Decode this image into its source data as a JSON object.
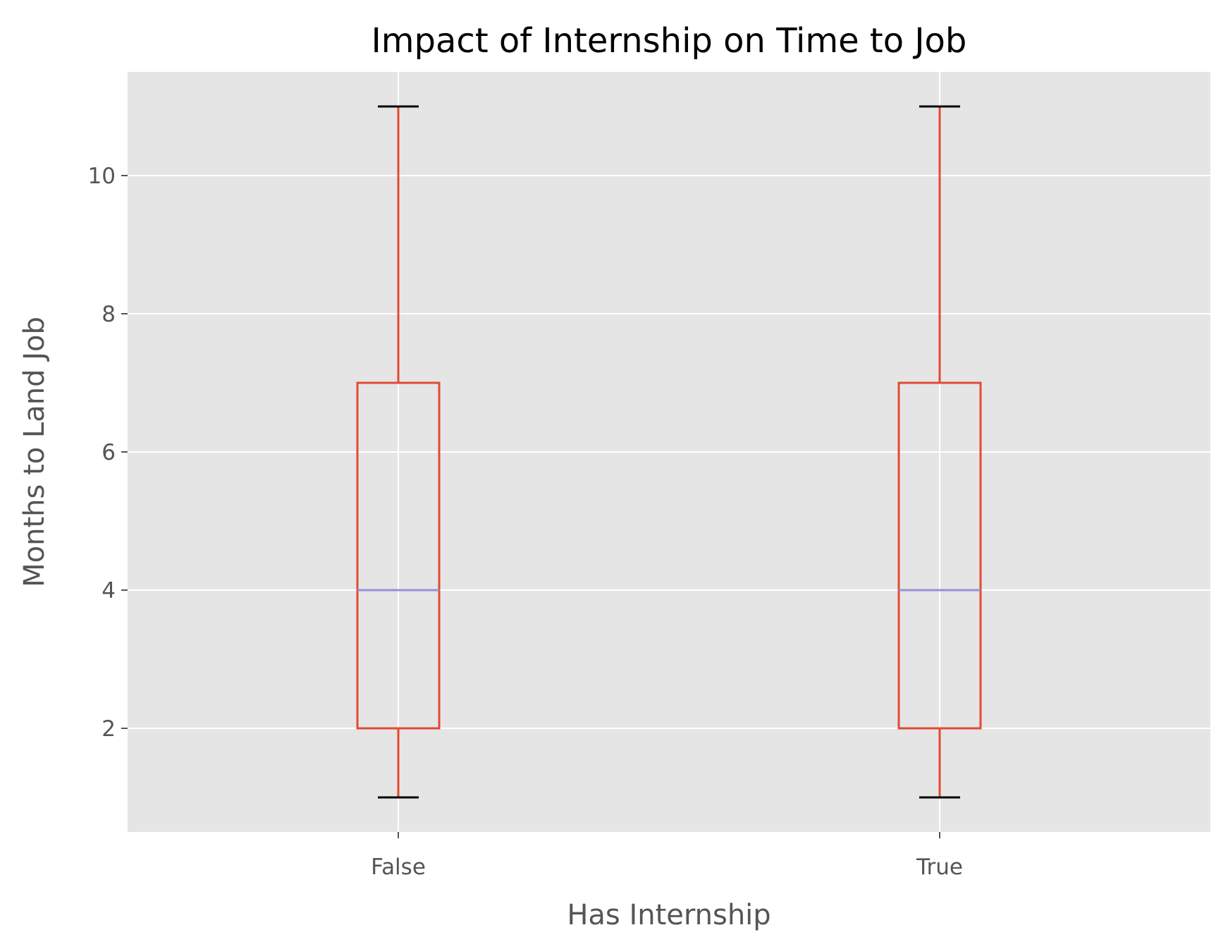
{
  "chart_data": {
    "type": "box",
    "title": "Impact of Internship on Time to Job",
    "xlabel": "Has Internship",
    "ylabel": "Months to Land Job",
    "categories": [
      "False",
      "True"
    ],
    "boxes": [
      {
        "category": "False",
        "whisker_low": 1,
        "q1": 2,
        "median": 4,
        "q3": 7,
        "whisker_high": 11
      },
      {
        "category": "True",
        "whisker_low": 1,
        "q1": 2,
        "median": 4,
        "q3": 7,
        "whisker_high": 11
      }
    ],
    "yticks": [
      2,
      4,
      6,
      8,
      10
    ],
    "ylim": [
      0.5,
      11.5
    ],
    "grid": true,
    "colors": {
      "panel_background": "#E5E5E5",
      "grid": "#FFFFFF",
      "box": "#E24A33",
      "median": "#988ED5",
      "caps": "#000000"
    }
  }
}
